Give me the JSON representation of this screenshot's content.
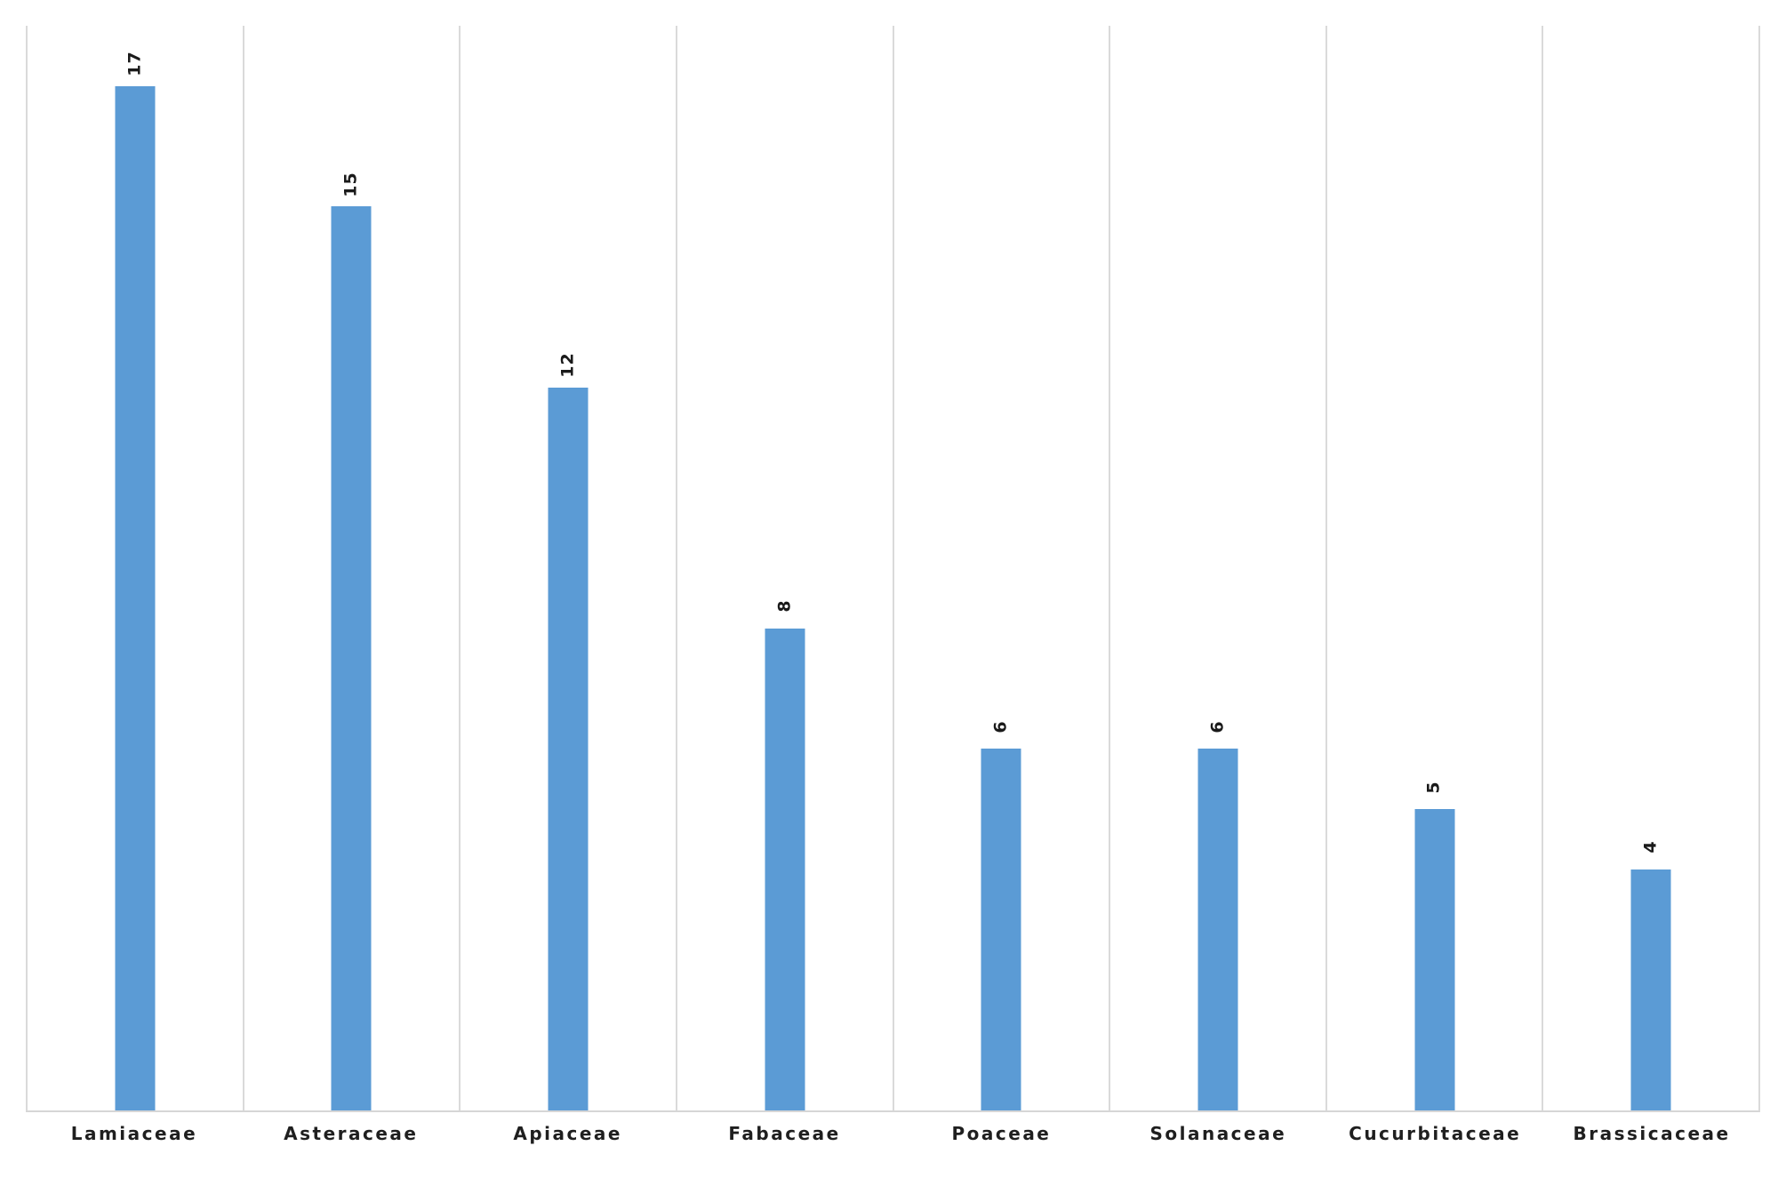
{
  "chart_data": {
    "type": "bar",
    "categories": [
      "Lamiaceae",
      "Asteraceae",
      "Apiaceae",
      "Fabaceae",
      "Poaceae",
      "Solanaceae",
      "Cucurbitaceae",
      "Brassicaceae"
    ],
    "values": [
      17,
      15,
      12,
      8,
      6,
      6,
      5,
      4
    ],
    "data_labels": [
      "17",
      "15",
      "12",
      "8",
      "6",
      "6",
      "5",
      "4"
    ],
    "data_label_rotation_deg": -90,
    "title": "",
    "xlabel": "",
    "ylabel": "",
    "ylim": [
      0,
      18
    ],
    "grid": "vertical-gridlines-only",
    "legend_position": "none",
    "colors": {
      "bar_fill": "#5B9BD5",
      "gridline": "#DADADA",
      "axis_line": "#D6D6D6",
      "data_label_text": "#1A1A1A",
      "category_label_text": "#1F1F1F",
      "background": "#FFFFFF"
    }
  }
}
